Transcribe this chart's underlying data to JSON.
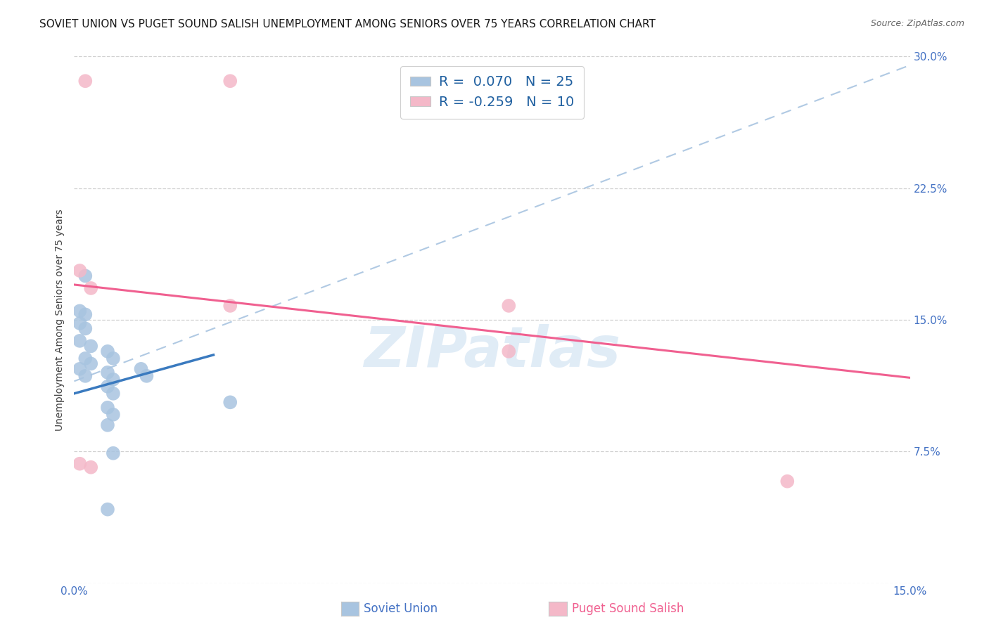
{
  "title": "SOVIET UNION VS PUGET SOUND SALISH UNEMPLOYMENT AMONG SENIORS OVER 75 YEARS CORRELATION CHART",
  "source": "Source: ZipAtlas.com",
  "ylabel": "Unemployment Among Seniors over 75 years",
  "xlabel_blue": "Soviet Union",
  "xlabel_pink": "Puget Sound Salish",
  "xlim": [
    0.0,
    0.15
  ],
  "ylim": [
    0.0,
    0.3
  ],
  "xticks": [
    0.0,
    0.025,
    0.05,
    0.075,
    0.1,
    0.125,
    0.15
  ],
  "yticks": [
    0.0,
    0.075,
    0.15,
    0.225,
    0.3
  ],
  "xtick_labels": [
    "0.0%",
    "",
    "",
    "",
    "",
    "",
    "15.0%"
  ],
  "ytick_labels": [
    "",
    "7.5%",
    "15.0%",
    "22.5%",
    "30.0%"
  ],
  "blue_r": 0.07,
  "blue_n": 25,
  "pink_r": -0.259,
  "pink_n": 10,
  "blue_color": "#a8c4e0",
  "pink_color": "#f4b8c8",
  "blue_line_color": "#3a7abf",
  "pink_line_color": "#f06090",
  "blue_scatter": [
    [
      0.002,
      0.175
    ],
    [
      0.001,
      0.155
    ],
    [
      0.002,
      0.153
    ],
    [
      0.001,
      0.148
    ],
    [
      0.002,
      0.145
    ],
    [
      0.001,
      0.138
    ],
    [
      0.003,
      0.135
    ],
    [
      0.002,
      0.128
    ],
    [
      0.003,
      0.125
    ],
    [
      0.001,
      0.122
    ],
    [
      0.002,
      0.118
    ],
    [
      0.006,
      0.132
    ],
    [
      0.007,
      0.128
    ],
    [
      0.006,
      0.12
    ],
    [
      0.007,
      0.116
    ],
    [
      0.006,
      0.112
    ],
    [
      0.007,
      0.108
    ],
    [
      0.006,
      0.1
    ],
    [
      0.007,
      0.096
    ],
    [
      0.006,
      0.09
    ],
    [
      0.007,
      0.074
    ],
    [
      0.012,
      0.122
    ],
    [
      0.013,
      0.118
    ],
    [
      0.028,
      0.103
    ],
    [
      0.006,
      0.042
    ]
  ],
  "pink_scatter": [
    [
      0.002,
      0.286
    ],
    [
      0.028,
      0.286
    ],
    [
      0.001,
      0.178
    ],
    [
      0.003,
      0.168
    ],
    [
      0.028,
      0.158
    ],
    [
      0.001,
      0.068
    ],
    [
      0.003,
      0.066
    ],
    [
      0.078,
      0.158
    ],
    [
      0.078,
      0.132
    ],
    [
      0.128,
      0.058
    ]
  ],
  "blue_trendline_dashed": [
    [
      0.0,
      0.115
    ],
    [
      0.15,
      0.295
    ]
  ],
  "blue_trendline_solid": [
    [
      0.0,
      0.108
    ],
    [
      0.025,
      0.13
    ]
  ],
  "pink_trendline": [
    [
      0.0,
      0.17
    ],
    [
      0.15,
      0.117
    ]
  ],
  "watermark": "ZIPatlas",
  "background_color": "#ffffff",
  "grid_color": "#d0d0d0"
}
